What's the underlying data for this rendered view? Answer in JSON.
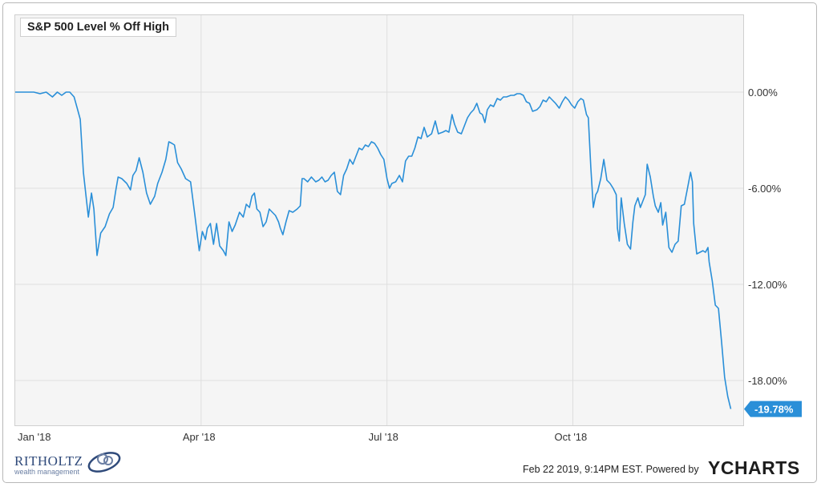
{
  "chart_data": {
    "type": "line",
    "title": "S&P 500 Level % Off High",
    "xlabel": "",
    "ylabel": "",
    "x_tick_labels": [
      "Jan '18",
      "Apr '18",
      "Jul '18",
      "Oct '18"
    ],
    "x_tick_positions": [
      0,
      3,
      6,
      9
    ],
    "y_tick_labels": [
      "0.00%",
      "-6.00%",
      "-12.00%",
      "-18.00%"
    ],
    "y_tick_values": [
      0,
      -6,
      -12,
      -18
    ],
    "ylim": [
      -20.8,
      4.8
    ],
    "xlim": [
      0,
      11.75
    ],
    "grid": true,
    "last_value_label": "-19.78%",
    "last_value": -19.78,
    "series": [
      {
        "color": "#2a8fd8",
        "points": [
          [
            0.0,
            0.0
          ],
          [
            0.15,
            0.0
          ],
          [
            0.3,
            0.0
          ],
          [
            0.4,
            -0.1
          ],
          [
            0.5,
            0.0
          ],
          [
            0.6,
            -0.3
          ],
          [
            0.68,
            0.0
          ],
          [
            0.75,
            -0.2
          ],
          [
            0.82,
            0.0
          ],
          [
            0.88,
            0.0
          ],
          [
            0.95,
            -0.3
          ],
          [
            1.0,
            -1.0
          ],
          [
            1.05,
            -1.7
          ],
          [
            1.1,
            -5.0
          ],
          [
            1.18,
            -7.8
          ],
          [
            1.23,
            -6.3
          ],
          [
            1.27,
            -7.3
          ],
          [
            1.32,
            -10.2
          ],
          [
            1.38,
            -8.8
          ],
          [
            1.45,
            -8.4
          ],
          [
            1.52,
            -7.6
          ],
          [
            1.58,
            -7.2
          ],
          [
            1.62,
            -6.2
          ],
          [
            1.66,
            -5.3
          ],
          [
            1.72,
            -5.4
          ],
          [
            1.8,
            -5.7
          ],
          [
            1.86,
            -6.1
          ],
          [
            1.9,
            -5.2
          ],
          [
            1.95,
            -4.9
          ],
          [
            2.0,
            -4.1
          ],
          [
            2.06,
            -5.0
          ],
          [
            2.12,
            -6.3
          ],
          [
            2.18,
            -7.0
          ],
          [
            2.25,
            -6.5
          ],
          [
            2.3,
            -5.7
          ],
          [
            2.37,
            -5.0
          ],
          [
            2.43,
            -4.2
          ],
          [
            2.48,
            -3.1
          ],
          [
            2.53,
            -3.2
          ],
          [
            2.57,
            -3.3
          ],
          [
            2.62,
            -4.4
          ],
          [
            2.68,
            -4.8
          ],
          [
            2.75,
            -5.4
          ],
          [
            2.83,
            -5.6
          ],
          [
            2.9,
            -7.7
          ],
          [
            2.97,
            -9.9
          ],
          [
            3.02,
            -8.7
          ],
          [
            3.07,
            -9.2
          ],
          [
            3.1,
            -8.5
          ],
          [
            3.15,
            -8.2
          ],
          [
            3.2,
            -9.5
          ],
          [
            3.25,
            -8.2
          ],
          [
            3.3,
            -9.6
          ],
          [
            3.36,
            -9.9
          ],
          [
            3.4,
            -10.2
          ],
          [
            3.45,
            -8.1
          ],
          [
            3.5,
            -8.7
          ],
          [
            3.55,
            -8.3
          ],
          [
            3.62,
            -7.5
          ],
          [
            3.68,
            -7.8
          ],
          [
            3.73,
            -7.0
          ],
          [
            3.78,
            -7.2
          ],
          [
            3.82,
            -6.5
          ],
          [
            3.86,
            -6.3
          ],
          [
            3.9,
            -7.3
          ],
          [
            3.95,
            -7.5
          ],
          [
            4.0,
            -8.4
          ],
          [
            4.05,
            -8.1
          ],
          [
            4.1,
            -7.3
          ],
          [
            4.15,
            -7.5
          ],
          [
            4.2,
            -7.7
          ],
          [
            4.25,
            -8.1
          ],
          [
            4.28,
            -8.5
          ],
          [
            4.32,
            -8.9
          ],
          [
            4.37,
            -8.1
          ],
          [
            4.42,
            -7.4
          ],
          [
            4.48,
            -7.5
          ],
          [
            4.55,
            -7.3
          ],
          [
            4.6,
            -7.1
          ],
          [
            4.63,
            -5.4
          ],
          [
            4.66,
            -5.4
          ],
          [
            4.72,
            -5.6
          ],
          [
            4.78,
            -5.3
          ],
          [
            4.85,
            -5.6
          ],
          [
            4.9,
            -5.5
          ],
          [
            4.95,
            -5.3
          ],
          [
            5.0,
            -5.6
          ],
          [
            5.05,
            -5.5
          ],
          [
            5.1,
            -5.2
          ],
          [
            5.15,
            -5.0
          ],
          [
            5.2,
            -6.2
          ],
          [
            5.25,
            -6.4
          ],
          [
            5.3,
            -5.2
          ],
          [
            5.35,
            -4.8
          ],
          [
            5.4,
            -4.2
          ],
          [
            5.45,
            -4.5
          ],
          [
            5.5,
            -4.0
          ],
          [
            5.55,
            -3.5
          ],
          [
            5.6,
            -3.6
          ],
          [
            5.65,
            -3.3
          ],
          [
            5.7,
            -3.4
          ],
          [
            5.75,
            -3.1
          ],
          [
            5.8,
            -3.2
          ],
          [
            5.85,
            -3.5
          ],
          [
            5.9,
            -3.9
          ],
          [
            5.95,
            -4.2
          ],
          [
            6.0,
            -5.4
          ],
          [
            6.04,
            -6.0
          ],
          [
            6.08,
            -5.7
          ],
          [
            6.14,
            -5.6
          ],
          [
            6.2,
            -5.2
          ],
          [
            6.25,
            -5.6
          ],
          [
            6.3,
            -4.3
          ],
          [
            6.35,
            -4.0
          ],
          [
            6.4,
            -4.0
          ],
          [
            6.45,
            -3.5
          ],
          [
            6.5,
            -2.8
          ],
          [
            6.55,
            -2.9
          ],
          [
            6.6,
            -2.2
          ],
          [
            6.65,
            -2.8
          ],
          [
            6.72,
            -2.6
          ],
          [
            6.78,
            -1.8
          ],
          [
            6.83,
            -2.6
          ],
          [
            6.9,
            -2.5
          ],
          [
            6.95,
            -2.4
          ],
          [
            7.0,
            -2.5
          ],
          [
            7.05,
            -1.4
          ],
          [
            7.09,
            -2.0
          ],
          [
            7.14,
            -2.5
          ],
          [
            7.2,
            -2.6
          ],
          [
            7.24,
            -2.2
          ],
          [
            7.3,
            -1.6
          ],
          [
            7.35,
            -1.3
          ],
          [
            7.4,
            -1.1
          ],
          [
            7.45,
            -0.7
          ],
          [
            7.5,
            -1.3
          ],
          [
            7.54,
            -1.4
          ],
          [
            7.58,
            -1.9
          ],
          [
            7.62,
            -1.1
          ],
          [
            7.67,
            -0.8
          ],
          [
            7.72,
            -0.9
          ],
          [
            7.78,
            -0.4
          ],
          [
            7.83,
            -0.5
          ],
          [
            7.88,
            -0.3
          ],
          [
            7.93,
            -0.3
          ],
          [
            8.0,
            -0.2
          ],
          [
            8.05,
            -0.2
          ],
          [
            8.1,
            -0.1
          ],
          [
            8.15,
            -0.1
          ],
          [
            8.2,
            -0.2
          ],
          [
            8.25,
            -0.6
          ],
          [
            8.3,
            -0.7
          ],
          [
            8.35,
            -1.2
          ],
          [
            8.42,
            -1.1
          ],
          [
            8.47,
            -0.9
          ],
          [
            8.52,
            -0.5
          ],
          [
            8.57,
            -0.6
          ],
          [
            8.62,
            -0.3
          ],
          [
            8.67,
            -0.5
          ],
          [
            8.72,
            -0.7
          ],
          [
            8.78,
            -1.0
          ],
          [
            8.83,
            -0.6
          ],
          [
            8.88,
            -0.3
          ],
          [
            8.93,
            -0.5
          ],
          [
            8.98,
            -0.8
          ],
          [
            9.03,
            -1.0
          ],
          [
            9.08,
            -0.6
          ],
          [
            9.13,
            -0.4
          ],
          [
            9.17,
            -0.5
          ],
          [
            9.22,
            -1.4
          ],
          [
            9.25,
            -1.6
          ],
          [
            9.29,
            -4.7
          ],
          [
            9.33,
            -7.2
          ],
          [
            9.37,
            -6.4
          ],
          [
            9.4,
            -6.2
          ],
          [
            9.45,
            -5.4
          ],
          [
            9.5,
            -4.2
          ],
          [
            9.55,
            -5.5
          ],
          [
            9.6,
            -5.7
          ],
          [
            9.65,
            -6.0
          ],
          [
            9.7,
            -6.4
          ],
          [
            9.72,
            -8.5
          ],
          [
            9.75,
            -9.3
          ],
          [
            9.78,
            -6.6
          ],
          [
            9.83,
            -8.2
          ],
          [
            9.88,
            -9.5
          ],
          [
            9.93,
            -9.8
          ],
          [
            9.97,
            -8.1
          ],
          [
            10.0,
            -7.1
          ],
          [
            10.05,
            -6.6
          ],
          [
            10.09,
            -7.2
          ],
          [
            10.13,
            -6.8
          ],
          [
            10.17,
            -6.4
          ],
          [
            10.2,
            -4.5
          ],
          [
            10.25,
            -5.3
          ],
          [
            10.3,
            -6.5
          ],
          [
            10.33,
            -7.1
          ],
          [
            10.38,
            -7.5
          ],
          [
            10.42,
            -6.9
          ],
          [
            10.45,
            -8.3
          ],
          [
            10.5,
            -7.5
          ],
          [
            10.55,
            -9.7
          ],
          [
            10.6,
            -10.0
          ],
          [
            10.65,
            -9.5
          ],
          [
            10.7,
            -9.3
          ],
          [
            10.75,
            -7.1
          ],
          [
            10.8,
            -7.0
          ],
          [
            10.85,
            -6.0
          ],
          [
            10.9,
            -5.0
          ],
          [
            10.93,
            -5.6
          ],
          [
            10.95,
            -8.2
          ],
          [
            11.0,
            -10.1
          ],
          [
            11.05,
            -10.0
          ],
          [
            11.1,
            -9.9
          ],
          [
            11.14,
            -10.0
          ],
          [
            11.18,
            -9.7
          ],
          [
            11.2,
            -10.6
          ],
          [
            11.25,
            -11.8
          ],
          [
            11.3,
            -13.3
          ],
          [
            11.35,
            -13.5
          ],
          [
            11.4,
            -15.6
          ],
          [
            11.45,
            -17.8
          ],
          [
            11.5,
            -19.0
          ],
          [
            11.55,
            -19.78
          ]
        ]
      }
    ]
  },
  "footer": {
    "timestamp": "Feb 22 2019, 9:14PM EST.",
    "powered_by": "Powered by",
    "brand": "YCHARTS"
  },
  "logo": {
    "name": "RITHOLTZ",
    "tagline": "wealth management"
  }
}
